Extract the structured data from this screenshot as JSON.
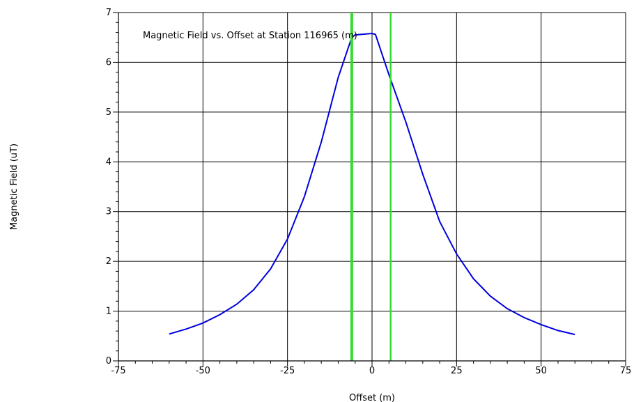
{
  "chart_data": {
    "type": "line",
    "title": "Magnetic Field vs. Offset at Station 116965 (m)",
    "xlabel": "Offset (m)",
    "ylabel": "Magnetic Field (uT)",
    "xlim": [
      -75,
      75
    ],
    "ylim": [
      0,
      7
    ],
    "xticks": [
      -75,
      -50,
      -25,
      0,
      25,
      50,
      75
    ],
    "yticks": [
      0,
      1,
      2,
      3,
      4,
      5,
      6,
      7
    ],
    "grid": true,
    "series": [
      {
        "color": "#0000dd",
        "x": [
          -60,
          -55,
          -50,
          -45,
          -40,
          -35,
          -30,
          -25,
          -20,
          -15,
          -10,
          -8,
          -6,
          -5,
          0,
          1,
          5,
          10,
          15,
          20,
          25,
          30,
          35,
          40,
          45,
          50,
          55,
          60
        ],
        "y": [
          0.54,
          0.64,
          0.76,
          0.93,
          1.14,
          1.43,
          1.85,
          2.45,
          3.3,
          4.4,
          5.7,
          6.1,
          6.5,
          6.55,
          6.58,
          6.56,
          5.75,
          4.8,
          3.75,
          2.8,
          2.15,
          1.65,
          1.3,
          1.05,
          0.87,
          0.73,
          0.61,
          0.53
        ]
      }
    ],
    "vlines": [
      {
        "x": -6,
        "color": "#33dd33"
      },
      {
        "x": 5.5,
        "color": "#33dd33"
      }
    ]
  }
}
